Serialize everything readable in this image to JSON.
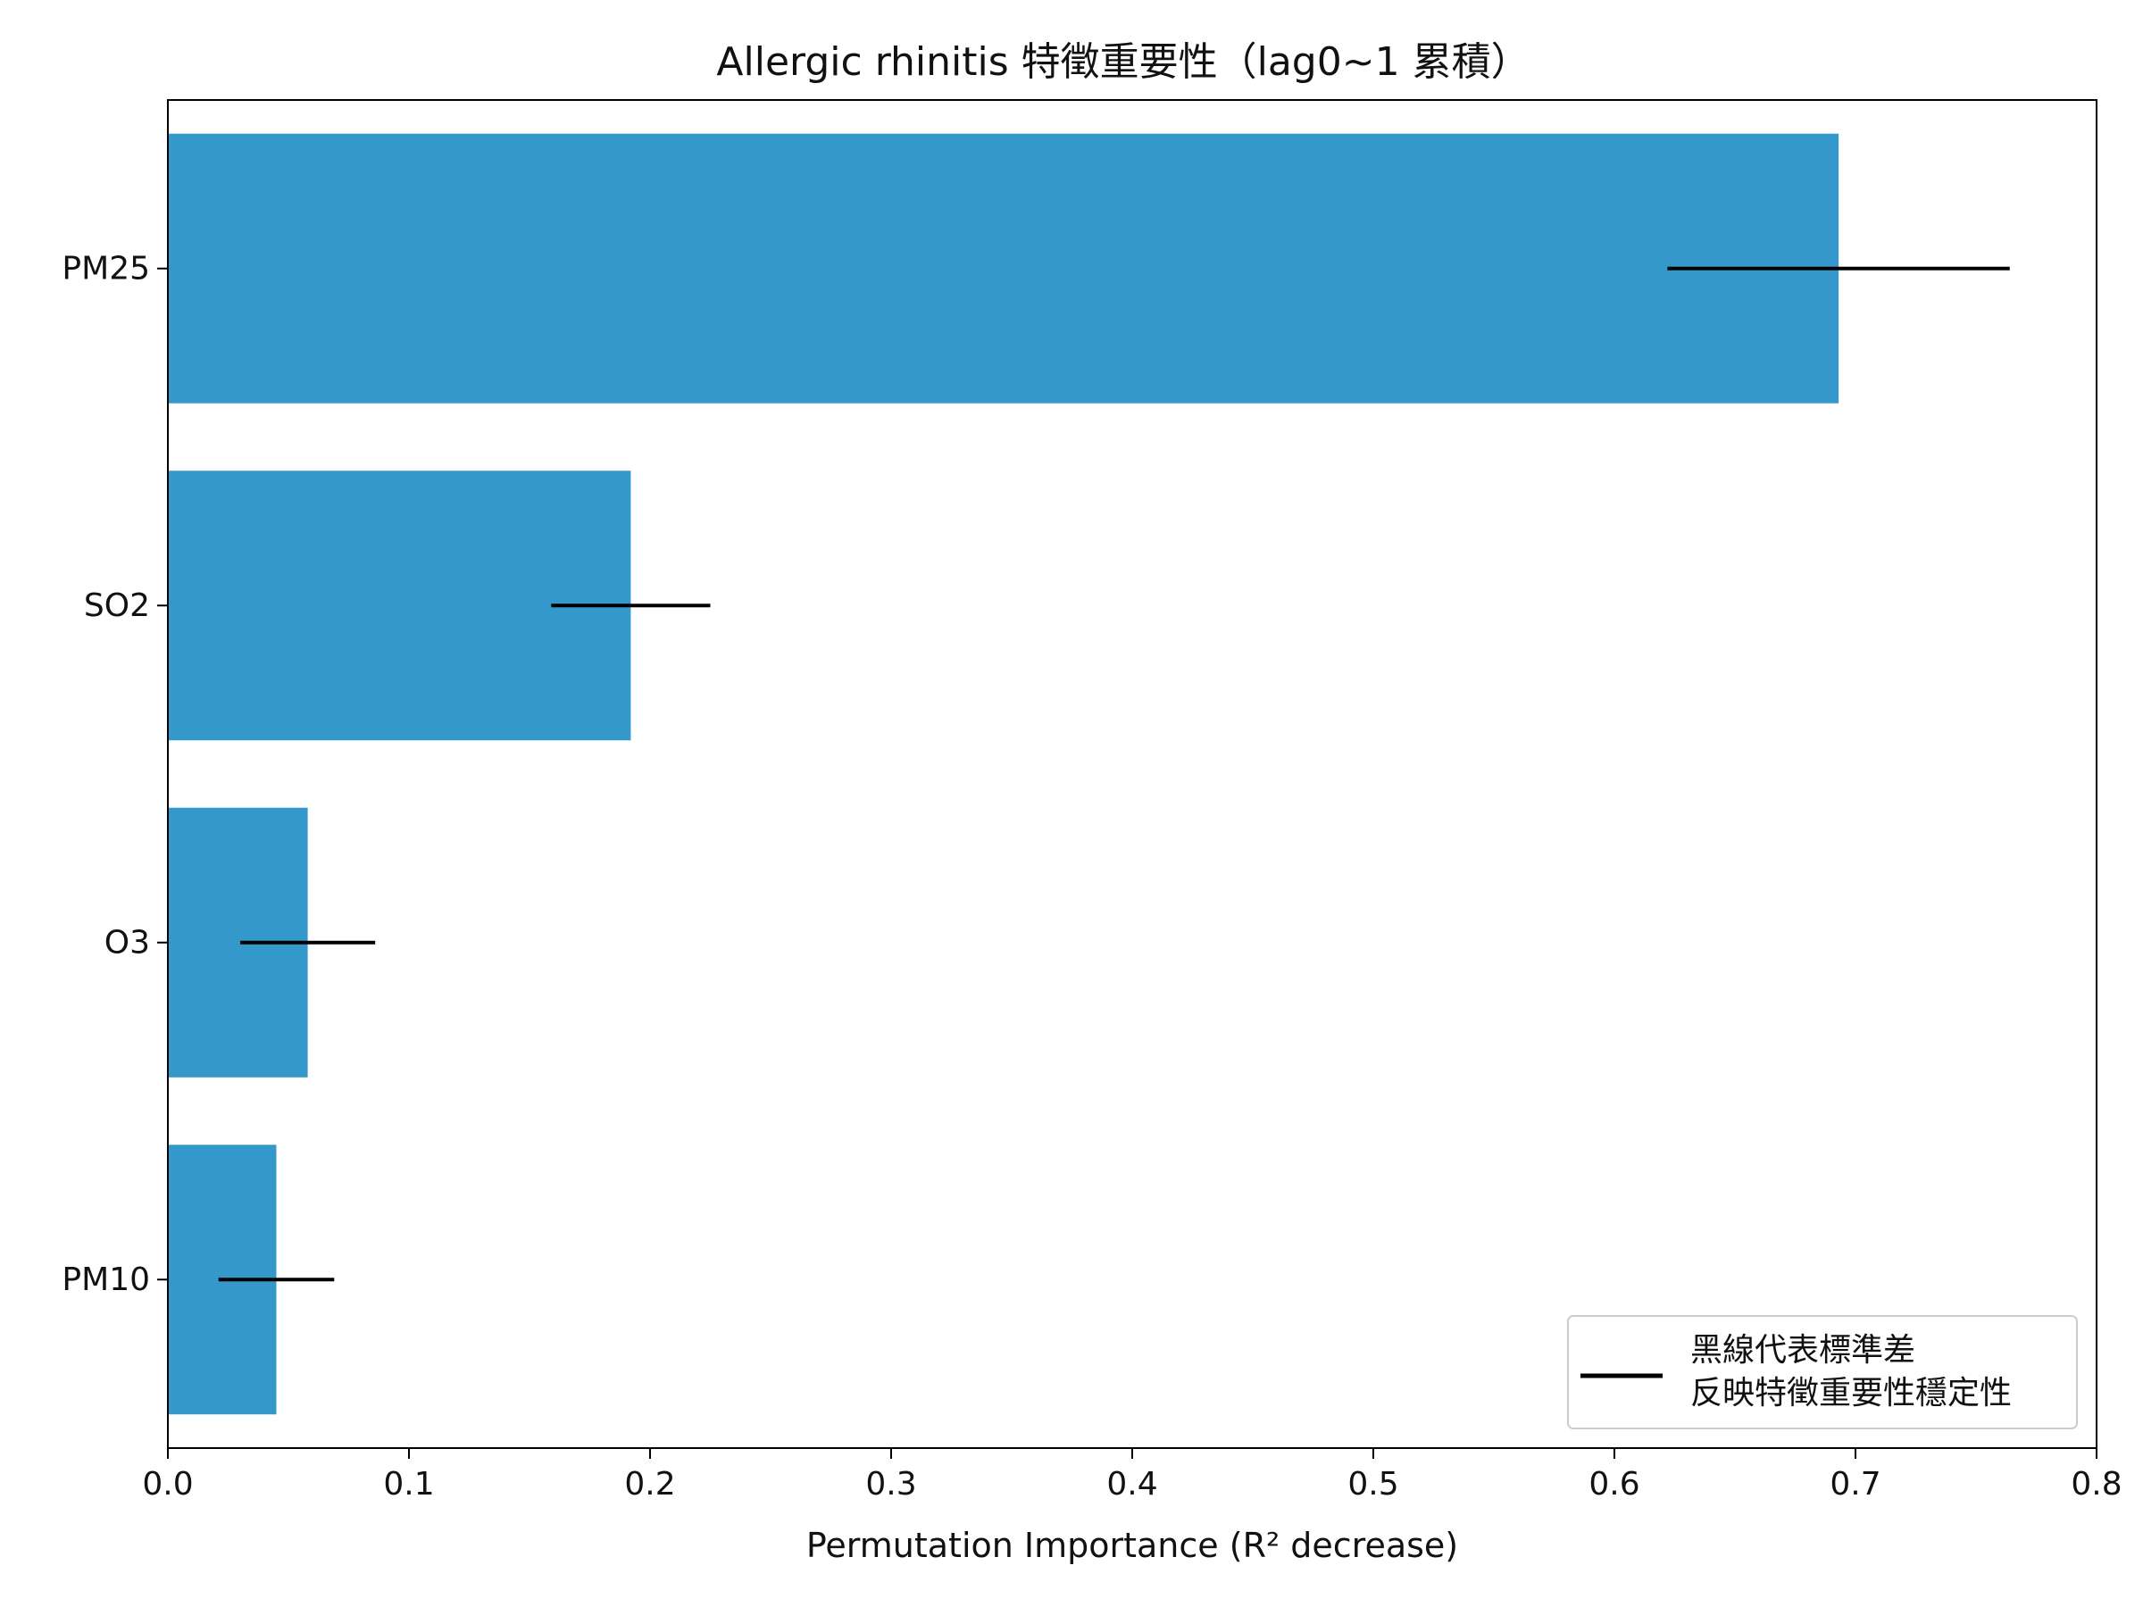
{
  "chart_data": {
    "type": "bar",
    "orientation": "horizontal",
    "title": "Allergic rhinitis 特徵重要性（lag0~1 累積）",
    "xlabel": "Permutation Importance (R² decrease)",
    "ylabel": "",
    "xlim": [
      0.0,
      0.8
    ],
    "xticks": [
      "0.0",
      "0.1",
      "0.2",
      "0.3",
      "0.4",
      "0.5",
      "0.6",
      "0.7",
      "0.8"
    ],
    "categories": [
      "PM25",
      "SO2",
      "O3",
      "PM10"
    ],
    "values": [
      0.693,
      0.192,
      0.058,
      0.045
    ],
    "error": [
      0.071,
      0.033,
      0.028,
      0.024
    ],
    "bar_color": "#3498cb",
    "errorbar_color": "#000000",
    "grid": false,
    "legend": {
      "position": "bottom-right",
      "lines": [
        "黑線代表標準差",
        "反映特徵重要性穩定性"
      ],
      "line_color": "#000000"
    }
  }
}
